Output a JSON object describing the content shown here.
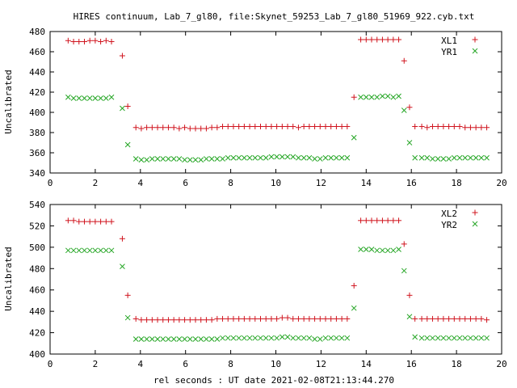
{
  "title": "HIRES continuum, Lab_7_gl80, file:Skynet_59253_Lab_7_gl80_51969_922.cyb.txt",
  "xlabel": "rel seconds : UT date 2021-02-08T21:13:44.270",
  "colors": {
    "series_a": "#d0141e",
    "series_b": "#26a626"
  },
  "chart_data": [
    {
      "type": "scatter",
      "ylabel": "Uncalibrated",
      "xlim": [
        0,
        20
      ],
      "ylim": [
        340,
        480
      ],
      "xticks": [
        0,
        2,
        4,
        6,
        8,
        10,
        12,
        14,
        16,
        18,
        20
      ],
      "yticks": [
        340,
        360,
        380,
        400,
        420,
        440,
        460,
        480
      ],
      "legend_position": "top-right",
      "x": [
        0.8,
        1.04,
        1.28,
        1.52,
        1.76,
        2.0,
        2.24,
        2.48,
        2.72,
        3.2,
        3.44,
        3.8,
        4.04,
        4.28,
        4.52,
        4.76,
        5.0,
        5.24,
        5.48,
        5.72,
        5.96,
        6.2,
        6.44,
        6.68,
        6.92,
        7.16,
        7.4,
        7.64,
        7.88,
        8.12,
        8.36,
        8.6,
        8.84,
        9.08,
        9.32,
        9.56,
        9.8,
        10.04,
        10.28,
        10.52,
        10.76,
        11.0,
        11.24,
        11.48,
        11.72,
        11.96,
        12.2,
        12.44,
        12.68,
        12.92,
        13.16,
        13.46,
        13.76,
        14.0,
        14.24,
        14.48,
        14.72,
        14.96,
        15.2,
        15.44,
        15.68,
        15.92,
        16.16,
        16.46,
        16.7,
        16.94,
        17.18,
        17.42,
        17.66,
        17.9,
        18.14,
        18.38,
        18.62,
        18.86,
        19.1,
        19.34
      ],
      "series": [
        {
          "name": "XL1",
          "marker": "plus",
          "values": [
            471,
            470,
            470,
            470,
            471,
            471,
            470,
            471,
            470,
            456,
            406,
            385,
            384,
            385,
            385,
            385,
            385,
            385,
            385,
            384,
            385,
            384,
            384,
            384,
            384,
            385,
            385,
            386,
            386,
            386,
            386,
            386,
            386,
            386,
            386,
            386,
            386,
            386,
            386,
            386,
            386,
            385,
            386,
            386,
            386,
            386,
            386,
            386,
            386,
            386,
            386,
            415,
            472,
            472,
            472,
            472,
            472,
            472,
            472,
            472,
            451,
            405,
            386,
            386,
            385,
            386,
            386,
            386,
            386,
            386,
            386,
            385,
            385,
            385,
            385,
            385
          ]
        },
        {
          "name": "YR1",
          "marker": "cross",
          "values": [
            415,
            414,
            414,
            414,
            414,
            414,
            414,
            414,
            415,
            404,
            368,
            354,
            353,
            353,
            354,
            354,
            354,
            354,
            354,
            354,
            353,
            353,
            353,
            353,
            354,
            354,
            354,
            354,
            355,
            355,
            355,
            355,
            355,
            355,
            355,
            355,
            356,
            356,
            356,
            356,
            356,
            355,
            355,
            355,
            354,
            354,
            355,
            355,
            355,
            355,
            355,
            375,
            415,
            415,
            415,
            415,
            416,
            416,
            415,
            416,
            402,
            370,
            355,
            355,
            355,
            354,
            354,
            354,
            354,
            355,
            355,
            355,
            355,
            355,
            355,
            355
          ]
        }
      ]
    },
    {
      "type": "scatter",
      "ylabel": "Uncalibrated",
      "xlim": [
        0,
        20
      ],
      "ylim": [
        400,
        540
      ],
      "xticks": [
        0,
        2,
        4,
        6,
        8,
        10,
        12,
        14,
        16,
        18,
        20
      ],
      "yticks": [
        400,
        420,
        440,
        460,
        480,
        500,
        520,
        540
      ],
      "legend_position": "top-right",
      "x": [
        0.8,
        1.04,
        1.28,
        1.52,
        1.76,
        2.0,
        2.24,
        2.48,
        2.72,
        3.2,
        3.44,
        3.8,
        4.04,
        4.28,
        4.52,
        4.76,
        5.0,
        5.24,
        5.48,
        5.72,
        5.96,
        6.2,
        6.44,
        6.68,
        6.92,
        7.16,
        7.4,
        7.64,
        7.88,
        8.12,
        8.36,
        8.6,
        8.84,
        9.08,
        9.32,
        9.56,
        9.8,
        10.04,
        10.28,
        10.52,
        10.76,
        11.0,
        11.24,
        11.48,
        11.72,
        11.96,
        12.2,
        12.44,
        12.68,
        12.92,
        13.16,
        13.46,
        13.76,
        14.0,
        14.24,
        14.48,
        14.72,
        14.96,
        15.2,
        15.44,
        15.68,
        15.92,
        16.16,
        16.46,
        16.7,
        16.94,
        17.18,
        17.42,
        17.66,
        17.9,
        18.14,
        18.38,
        18.62,
        18.86,
        19.1,
        19.34
      ],
      "series": [
        {
          "name": "XL2",
          "marker": "plus",
          "values": [
            525,
            525,
            524,
            524,
            524,
            524,
            524,
            524,
            524,
            508,
            455,
            433,
            432,
            432,
            432,
            432,
            432,
            432,
            432,
            432,
            432,
            432,
            432,
            432,
            432,
            432,
            433,
            433,
            433,
            433,
            433,
            433,
            433,
            433,
            433,
            433,
            433,
            433,
            434,
            434,
            433,
            433,
            433,
            433,
            433,
            433,
            433,
            433,
            433,
            433,
            433,
            464,
            525,
            525,
            525,
            525,
            525,
            525,
            525,
            525,
            503,
            455,
            433,
            433,
            433,
            433,
            433,
            433,
            433,
            433,
            433,
            433,
            433,
            433,
            433,
            432
          ]
        },
        {
          "name": "YR2",
          "marker": "cross",
          "values": [
            497,
            497,
            497,
            497,
            497,
            497,
            497,
            497,
            497,
            482,
            434,
            414,
            414,
            414,
            414,
            414,
            414,
            414,
            414,
            414,
            414,
            414,
            414,
            414,
            414,
            414,
            414,
            415,
            415,
            415,
            415,
            415,
            415,
            415,
            415,
            415,
            415,
            415,
            416,
            416,
            415,
            415,
            415,
            415,
            414,
            414,
            415,
            415,
            415,
            415,
            415,
            443,
            498,
            498,
            498,
            497,
            497,
            497,
            497,
            498,
            478,
            435,
            416,
            415,
            415,
            415,
            415,
            415,
            415,
            415,
            415,
            415,
            415,
            415,
            415,
            415
          ]
        }
      ]
    }
  ]
}
